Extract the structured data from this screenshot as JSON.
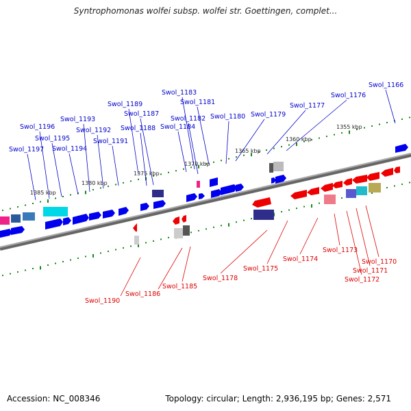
{
  "title": "Syntrophomonas wolfei subsp. wolfei str. Goettingen, complet...",
  "footer": {
    "accession": "Accession: NC_008346",
    "summary": "Topology: circular; Length: 2,936,195 bp; Genes: 2,571"
  },
  "colors": {
    "plus_strand": "#0000ee",
    "minus_strand": "#ee0000",
    "backbone": "#888888",
    "ticks": "#118811"
  },
  "scale_labels": [
    "1385 kbp",
    "1380 kbp",
    "1375 kbp",
    "1370 kbp",
    "1365 kbp",
    "1360 kbp",
    "1355 kbp"
  ],
  "plus_labels": [
    "Swol_1197",
    "Swol_1196",
    "Swol_1195",
    "Swol_1194",
    "Swol_1193",
    "Swol_1192",
    "Swol_1191",
    "Swol_1189",
    "Swol_1188",
    "Swol_1187",
    "Swol_1184",
    "Swol_1183",
    "Swol_1182",
    "Swol_1181",
    "Swol_1180",
    "Swol_1179",
    "Swol_1177",
    "Swol_1176",
    "Swol_1166"
  ],
  "minus_labels": [
    "Swol_1190",
    "Swol_1186",
    "Swol_1185",
    "Swol_1178",
    "Swol_1175",
    "Swol_1174",
    "Swol_1173",
    "Swol_1172",
    "Swol_1171",
    "Swol_1170"
  ]
}
